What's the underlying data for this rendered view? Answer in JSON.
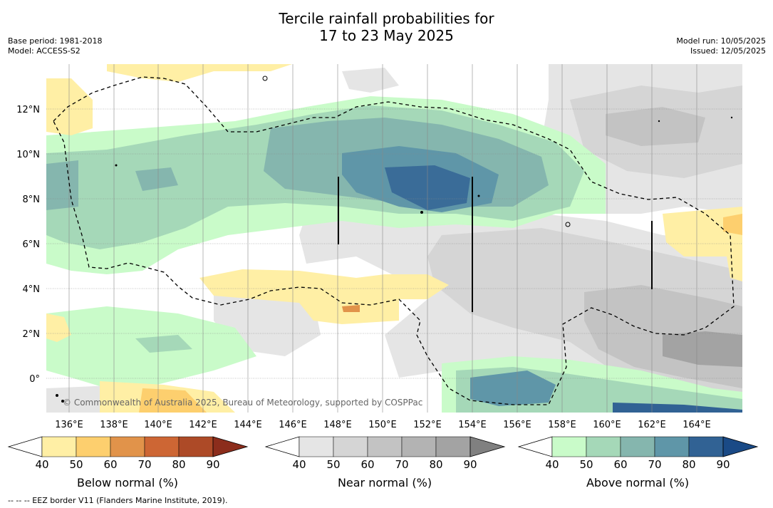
{
  "title_line1": "Tercile rainfall probabilities for",
  "title_line2": "17 to 23 May 2025",
  "base_period": "Base period: 1981-2018",
  "model": "Model: ACCESS-S2",
  "model_run": "Model run: 10/05/2025",
  "issued": "Issued: 12/05/2025",
  "copyright": "© Commonwealth of Australia 2025, Bureau of Meteorology, supported by COSPPac",
  "footnote": "--  --  -- EEZ border V11 (Flanders Marine Institute, 2019).",
  "lon_labels": [
    "136°E",
    "138°E",
    "140°E",
    "142°E",
    "144°E",
    "146°E",
    "148°E",
    "150°E",
    "152°E",
    "154°E",
    "156°E",
    "158°E",
    "160°E",
    "162°E",
    "164°E"
  ],
  "lat_labels": [
    "12°N",
    "10°N",
    "8°N",
    "6°N",
    "4°N",
    "2°N",
    "0°"
  ],
  "legends": [
    {
      "title": "Below normal (%)",
      "ticks": [
        "40",
        "50",
        "60",
        "70",
        "80",
        "90"
      ],
      "colors": [
        "#ffefa5",
        "#fdcf6e",
        "#e1934a",
        "#cd6634",
        "#ad4a27",
        "#8c2d1c"
      ]
    },
    {
      "title": "Near normal (%)",
      "ticks": [
        "40",
        "50",
        "60",
        "70",
        "80",
        "90"
      ],
      "colors": [
        "#e5e5e5",
        "#d5d5d5",
        "#c3c3c3",
        "#b3b3b3",
        "#a3a3a3",
        "#808080"
      ]
    },
    {
      "title": "Above normal (%)",
      "ticks": [
        "40",
        "50",
        "60",
        "70",
        "80",
        "90"
      ],
      "colors": [
        "#c9fbc9",
        "#a5d8b8",
        "#85b6ae",
        "#5f96a8",
        "#316294",
        "#1a4a86"
      ]
    }
  ]
}
